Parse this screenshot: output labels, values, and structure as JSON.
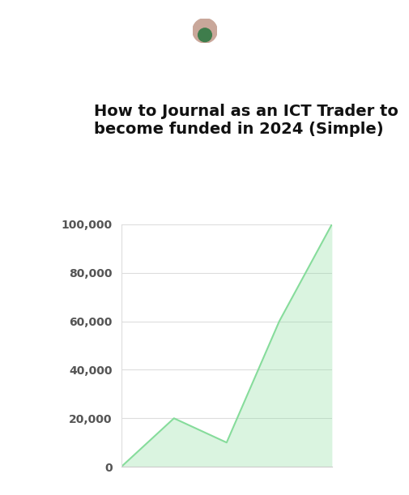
{
  "chart_data": {
    "type": "area",
    "title": "How to Journal as an ICT Trader to become funded in 2024 (Simple)",
    "categories": [
      null,
      null,
      null,
      null,
      null
    ],
    "values": [
      0,
      20000,
      10000,
      60000,
      100000
    ],
    "color": "#86dc9b",
    "ylim": [
      0,
      100000
    ],
    "yticks": [
      0,
      {
        "value": 20000,
        "label": "20,000"
      },
      {
        "value": 40000,
        "label": "40,000"
      },
      {
        "value": 60000,
        "label": "60,000"
      },
      {
        "value": 80000,
        "label": "80,000"
      },
      {
        "value": 100000,
        "label": "100,000"
      }
    ],
    "grid": true,
    "tick_labels": "y"
  }
}
